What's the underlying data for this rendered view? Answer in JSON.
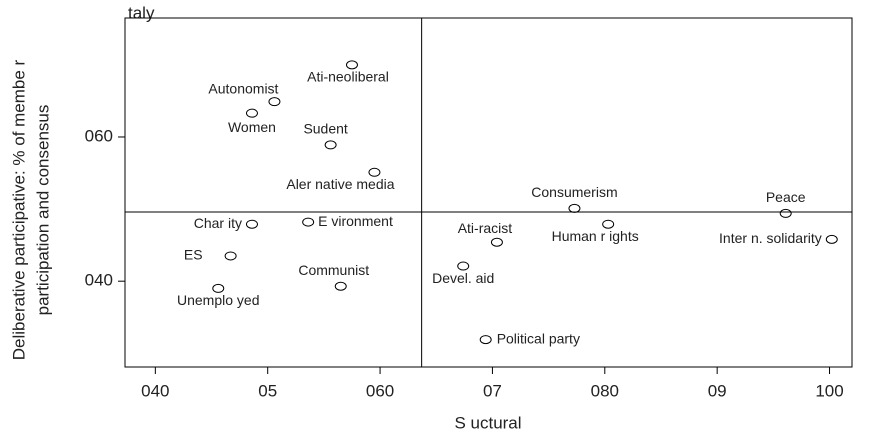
{
  "chart_data": {
    "type": "scatter",
    "title": "taly",
    "x_label": "S uctural",
    "y_label": [
      "Deliberative participative: % of membe r",
      "participation and consensus"
    ],
    "xlim": [
      37.3,
      102
    ],
    "ylim": [
      28.1,
      76.5
    ],
    "xticks": [
      {
        "value": 40,
        "label": "040"
      },
      {
        "value": 50,
        "label": "05"
      },
      {
        "value": 60,
        "label": "060"
      },
      {
        "value": 70,
        "label": "07"
      },
      {
        "value": 80,
        "label": "080"
      },
      {
        "value": 90,
        "label": "09"
      },
      100
    ],
    "yticks": [
      {
        "value": 40,
        "label": "040"
      },
      {
        "value": 60,
        "label": "060"
      }
    ],
    "vline": 63.7,
    "hline": 49.6,
    "labels": [
      "Ati-neoliberal",
      "Autonomist",
      "Women",
      "Sudent",
      "Aler native media",
      "Consumerism",
      "Peace",
      "Char ity",
      "E vironment",
      "Ati-racist",
      "Human r ights",
      "Inter n. solidarity",
      "ES",
      "Devel. aid",
      "Communist",
      "Unemplo yed",
      "Political party"
    ],
    "x": [
      57.5,
      50.6,
      48.6,
      55.6,
      59.5,
      77.3,
      96.1,
      48.6,
      53.6,
      70.4,
      80.3,
      100.2,
      46.7,
      67.4,
      56.5,
      45.6,
      69.4
    ],
    "y": [
      70.0,
      64.9,
      63.3,
      58.9,
      55.1,
      50.1,
      49.4,
      47.9,
      48.2,
      45.4,
      47.9,
      45.8,
      43.5,
      42.1,
      39.3,
      39.0,
      31.9
    ],
    "color": "#000000"
  }
}
